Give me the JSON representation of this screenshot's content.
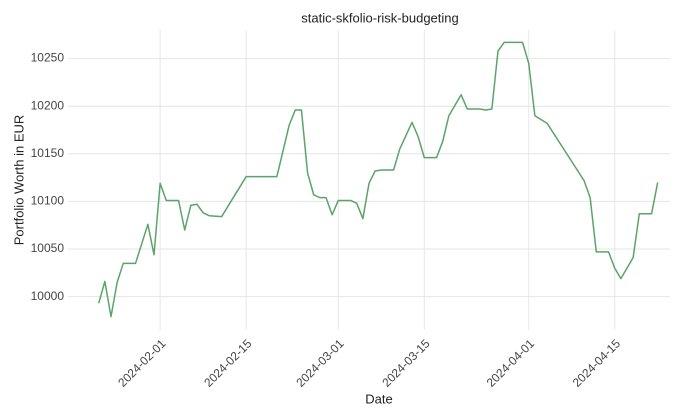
{
  "chart_data": {
    "type": "line",
    "title": "static-skfolio-risk-budgeting",
    "x_label": "Date",
    "y_label": "Portfolio Worth in EUR",
    "x": [
      "2024-01-22",
      "2024-01-23",
      "2024-01-24",
      "2024-01-25",
      "2024-01-26",
      "2024-01-28",
      "2024-01-30",
      "2024-01-31",
      "2024-02-01",
      "2024-02-02",
      "2024-02-04",
      "2024-02-05",
      "2024-02-06",
      "2024-02-07",
      "2024-02-08",
      "2024-02-09",
      "2024-02-11",
      "2024-02-15",
      "2024-02-20",
      "2024-02-22",
      "2024-02-23",
      "2024-02-24",
      "2024-02-25",
      "2024-02-26",
      "2024-02-27",
      "2024-02-28",
      "2024-02-29",
      "2024-03-01",
      "2024-03-03",
      "2024-03-04",
      "2024-03-05",
      "2024-03-06",
      "2024-03-07",
      "2024-03-08",
      "2024-03-10",
      "2024-03-11",
      "2024-03-13",
      "2024-03-14",
      "2024-03-15",
      "2024-03-17",
      "2024-03-18",
      "2024-03-19",
      "2024-03-21",
      "2024-03-22",
      "2024-03-24",
      "2024-03-25",
      "2024-03-26",
      "2024-03-27",
      "2024-03-28",
      "2024-03-31",
      "2024-04-01",
      "2024-04-02",
      "2024-04-04",
      "2024-04-10",
      "2024-04-11",
      "2024-04-12",
      "2024-04-14",
      "2024-04-15",
      "2024-04-16",
      "2024-04-18",
      "2024-04-19",
      "2024-04-21",
      "2024-04-22"
    ],
    "values": [
      9993,
      10016,
      9979,
      10015,
      10035,
      10035,
      10076,
      10044,
      10119,
      10101,
      10101,
      10070,
      10096,
      10097,
      10088,
      10085,
      10084,
      10126,
      10126,
      10180,
      10196,
      10196,
      10130,
      10107,
      10104,
      10104,
      10086,
      10101,
      10101,
      10098,
      10082,
      10119,
      10132,
      10133,
      10133,
      10155,
      10183,
      10168,
      10146,
      10146,
      10163,
      10190,
      10212,
      10197,
      10197,
      10196,
      10197,
      10258,
      10267,
      10267,
      10245,
      10190,
      10182,
      10122,
      10104,
      10047,
      10047,
      10030,
      10019,
      10041,
      10087,
      10087,
      10120
    ],
    "color": "#5aa469",
    "xlim": [
      "2024-01-17",
      "2024-04-24"
    ],
    "xticks": [
      "2024-02-01",
      "2024-02-15",
      "2024-03-01",
      "2024-03-15",
      "2024-04-01",
      "2024-04-15"
    ],
    "ylim": [
      9965,
      10280
    ],
    "yticks": [
      10000,
      10050,
      10100,
      10150,
      10200,
      10250
    ],
    "grid": true
  }
}
